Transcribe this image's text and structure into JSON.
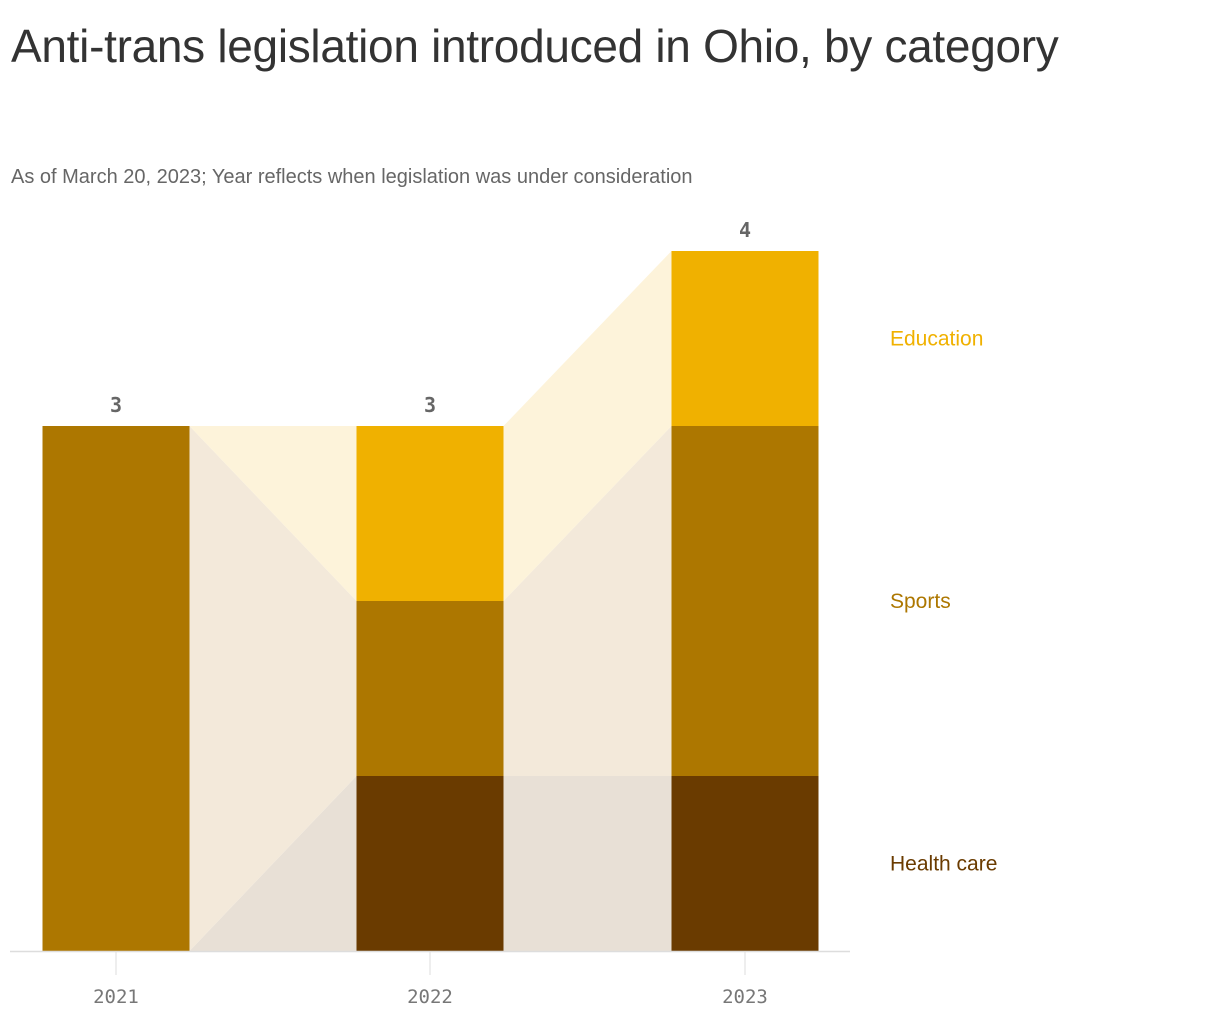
{
  "title": "Anti-trans legislation introduced in Ohio, by category",
  "subtitle": "As of March 20, 2023; Year reflects when legislation was under consideration",
  "chart_data": {
    "type": "bar",
    "stacked": true,
    "categories": [
      "2021",
      "2022",
      "2023"
    ],
    "series": [
      {
        "name": "Health care",
        "values": [
          0,
          1,
          1
        ],
        "color": "#6a3b00",
        "band_color": "#e8e0d6"
      },
      {
        "name": "Sports",
        "values": [
          3,
          1,
          2
        ],
        "color": "#ad7700",
        "band_color": "#f3e9da"
      },
      {
        "name": "Education",
        "values": [
          0,
          1,
          1
        ],
        "color": "#f0b100",
        "band_color": "#fdf3da"
      }
    ],
    "totals": [
      "3",
      "3",
      "4"
    ],
    "ylim": [
      0,
      4
    ],
    "legend_placement": "right",
    "xlabel": "",
    "ylabel": ""
  }
}
